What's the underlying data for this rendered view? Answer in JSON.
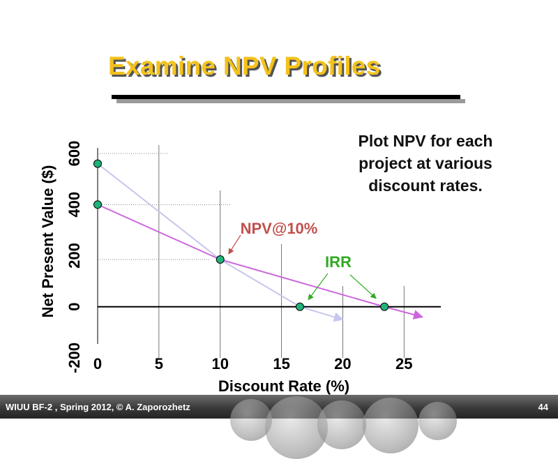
{
  "slide": {
    "title": "Examine NPV Profiles",
    "note_lines": [
      "Plot NPV for each",
      "project at various",
      "discount rates."
    ],
    "footer": "WIUU BF-2 , Spring 2012, © A. Zaporozhetz",
    "page_number": "44"
  },
  "colors": {
    "title": "#f4c21a",
    "series_a": "#cc66dd",
    "series_b": "#c6c6ee",
    "points": "#1fb37a",
    "npv_annotation": "#c0504d",
    "irr_annotation": "#33aa22"
  },
  "chart_data": {
    "type": "line",
    "xlabel": "Discount Rate (%)",
    "ylabel": "Net Present Value ($)",
    "xlim": [
      0,
      28
    ],
    "ylim": [
      -200,
      600
    ],
    "xticks": [
      0,
      5,
      10,
      15,
      20,
      25
    ],
    "yticks": [
      -200,
      0,
      200,
      400,
      600
    ],
    "series": [
      {
        "color": "#cc66dd",
        "x": [
          0,
          10,
          23.4,
          26.5
        ],
        "y": [
          400,
          185,
          0,
          -40
        ]
      },
      {
        "color": "#c6c6ee",
        "x": [
          0,
          10,
          16.5,
          20
        ],
        "y": [
          560,
          185,
          0,
          -50
        ]
      }
    ],
    "markers": [
      {
        "x": 0,
        "y": 560
      },
      {
        "x": 0,
        "y": 400
      },
      {
        "x": 10,
        "y": 185
      },
      {
        "x": 16.5,
        "y": 0
      },
      {
        "x": 23.4,
        "y": 0
      }
    ],
    "annotations": [
      {
        "label": "NPV@10%",
        "target": [
          10,
          185
        ]
      },
      {
        "label": "IRR",
        "targets": [
          [
            16.5,
            0
          ],
          [
            23.4,
            0
          ]
        ]
      }
    ]
  }
}
